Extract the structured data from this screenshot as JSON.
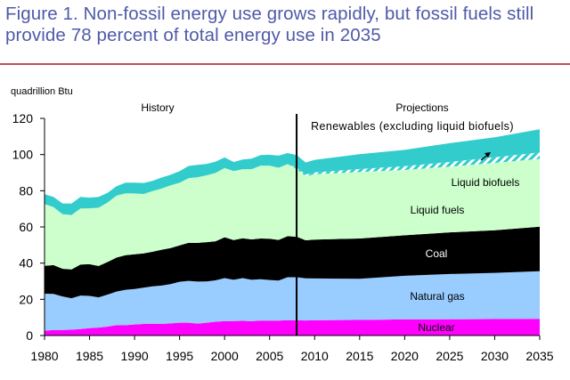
{
  "figure_title": "Figure 1. Non-fossil energy use grows rapidly, but fossil fuels still provide 78 percent of total energy use in 2035",
  "colors": {
    "title": "#4f5aa8",
    "rule": "#c0505a",
    "nuclear": "#ff00ff",
    "natural_gas": "#99ccff",
    "coal": "#000000",
    "liquid_fuels": "#ccffcc",
    "liquid_biofuels": "#33cccc",
    "renewables": "#33cccc"
  },
  "chart_data": {
    "type": "area",
    "stacked": true,
    "title": "",
    "ylabel": "quadrillion Btu",
    "xlabel": "",
    "xlim": [
      1980,
      2035
    ],
    "ylim": [
      0,
      120
    ],
    "x_ticks": [
      "1980",
      "1985",
      "1990",
      "1995",
      "2000",
      "2005",
      "2010",
      "2015",
      "2020",
      "2025",
      "2030",
      "2035"
    ],
    "y_ticks": [
      "0",
      "20",
      "40",
      "60",
      "80",
      "100",
      "120"
    ],
    "grid": false,
    "divider_year": 2008,
    "period_labels": {
      "history": "History",
      "projections": "Projections"
    },
    "x": [
      1980,
      1981,
      1982,
      1983,
      1984,
      1985,
      1986,
      1987,
      1988,
      1989,
      1990,
      1991,
      1992,
      1993,
      1994,
      1995,
      1996,
      1997,
      1998,
      1999,
      2000,
      2001,
      2002,
      2003,
      2004,
      2005,
      2006,
      2007,
      2008,
      2009,
      2010,
      2015,
      2020,
      2025,
      2030,
      2035
    ],
    "series": [
      {
        "name": "Nuclear",
        "color": "#ff00ff",
        "values": [
          2.7,
          3.0,
          3.1,
          3.2,
          3.6,
          4.1,
          4.4,
          4.9,
          5.7,
          5.7,
          6.1,
          6.4,
          6.5,
          6.4,
          6.7,
          7.1,
          7.1,
          6.6,
          7.1,
          7.6,
          7.9,
          8.0,
          8.1,
          7.9,
          8.2,
          8.2,
          8.2,
          8.5,
          8.4,
          8.3,
          8.4,
          8.6,
          8.9,
          9.0,
          9.1,
          9.2
        ]
      },
      {
        "name": "Natural gas",
        "color": "#99ccff",
        "values": [
          20.4,
          20.0,
          18.5,
          17.4,
          18.5,
          17.8,
          16.7,
          17.7,
          18.6,
          19.6,
          19.6,
          20.0,
          20.7,
          21.2,
          21.7,
          22.6,
          23.1,
          23.2,
          22.8,
          22.9,
          23.8,
          22.8,
          23.6,
          22.9,
          22.9,
          22.5,
          22.2,
          23.7,
          23.8,
          23.3,
          23.1,
          22.8,
          24.1,
          25.0,
          25.5,
          26.3
        ]
      },
      {
        "name": "Coal",
        "color": "#000000",
        "values": [
          15.4,
          15.9,
          15.3,
          15.9,
          17.1,
          17.5,
          17.3,
          18.0,
          18.8,
          19.1,
          19.2,
          19.0,
          19.1,
          19.8,
          19.9,
          20.1,
          21.0,
          21.4,
          21.7,
          21.6,
          22.6,
          21.9,
          22.0,
          22.3,
          22.5,
          22.8,
          22.4,
          22.7,
          22.4,
          21.0,
          21.5,
          22.2,
          22.4,
          23.0,
          23.6,
          24.6
        ]
      },
      {
        "name": "Liquid fuels",
        "color": "#ccffcc",
        "values": [
          34.2,
          32.0,
          30.2,
          30.1,
          31.0,
          30.9,
          32.2,
          32.9,
          34.2,
          34.2,
          33.6,
          32.8,
          33.5,
          33.8,
          34.7,
          34.6,
          35.7,
          36.3,
          36.9,
          37.8,
          38.3,
          38.2,
          38.2,
          38.8,
          40.3,
          40.4,
          39.9,
          39.8,
          37.3,
          35.5,
          36.1,
          36.8,
          36.1,
          36.3,
          37.2,
          37.5
        ]
      },
      {
        "name": "Liquid biofuels",
        "color": "#33cccc",
        "pattern": "hatched",
        "values": [
          0.0,
          0.0,
          0.0,
          0.0,
          0.0,
          0.0,
          0.0,
          0.0,
          0.0,
          0.0,
          0.0,
          0.0,
          0.0,
          0.0,
          0.0,
          0.0,
          0.0,
          0.0,
          0.0,
          0.0,
          0.0,
          0.0,
          0.0,
          0.0,
          0.0,
          0.0,
          0.0,
          0.0,
          0.8,
          0.9,
          1.0,
          1.6,
          2.1,
          2.6,
          3.1,
          3.6
        ]
      },
      {
        "name": "Renewables (excluding liquid biofuels)",
        "color": "#33cccc",
        "values": [
          5.4,
          5.7,
          5.9,
          6.3,
          6.4,
          5.9,
          6.0,
          5.4,
          5.2,
          5.9,
          6.0,
          6.1,
          5.7,
          6.1,
          5.8,
          6.4,
          6.8,
          6.8,
          6.3,
          6.2,
          5.8,
          5.0,
          5.4,
          5.8,
          5.8,
          6.0,
          6.7,
          6.1,
          7.0,
          6.6,
          7.0,
          8.2,
          9.0,
          10.4,
          11.0,
          12.8
        ]
      }
    ],
    "labels": [
      {
        "text": "Renewables (excluding liquid biofuels)",
        "series": "Renewables (excluding liquid biofuels)"
      },
      {
        "text": "Liquid biofuels",
        "series": "Liquid biofuels"
      },
      {
        "text": "Liquid fuels",
        "series": "Liquid fuels"
      },
      {
        "text": "Coal",
        "series": "Coal"
      },
      {
        "text": "Natural gas",
        "series": "Natural gas"
      },
      {
        "text": "Nuclear",
        "series": "Nuclear"
      }
    ]
  }
}
